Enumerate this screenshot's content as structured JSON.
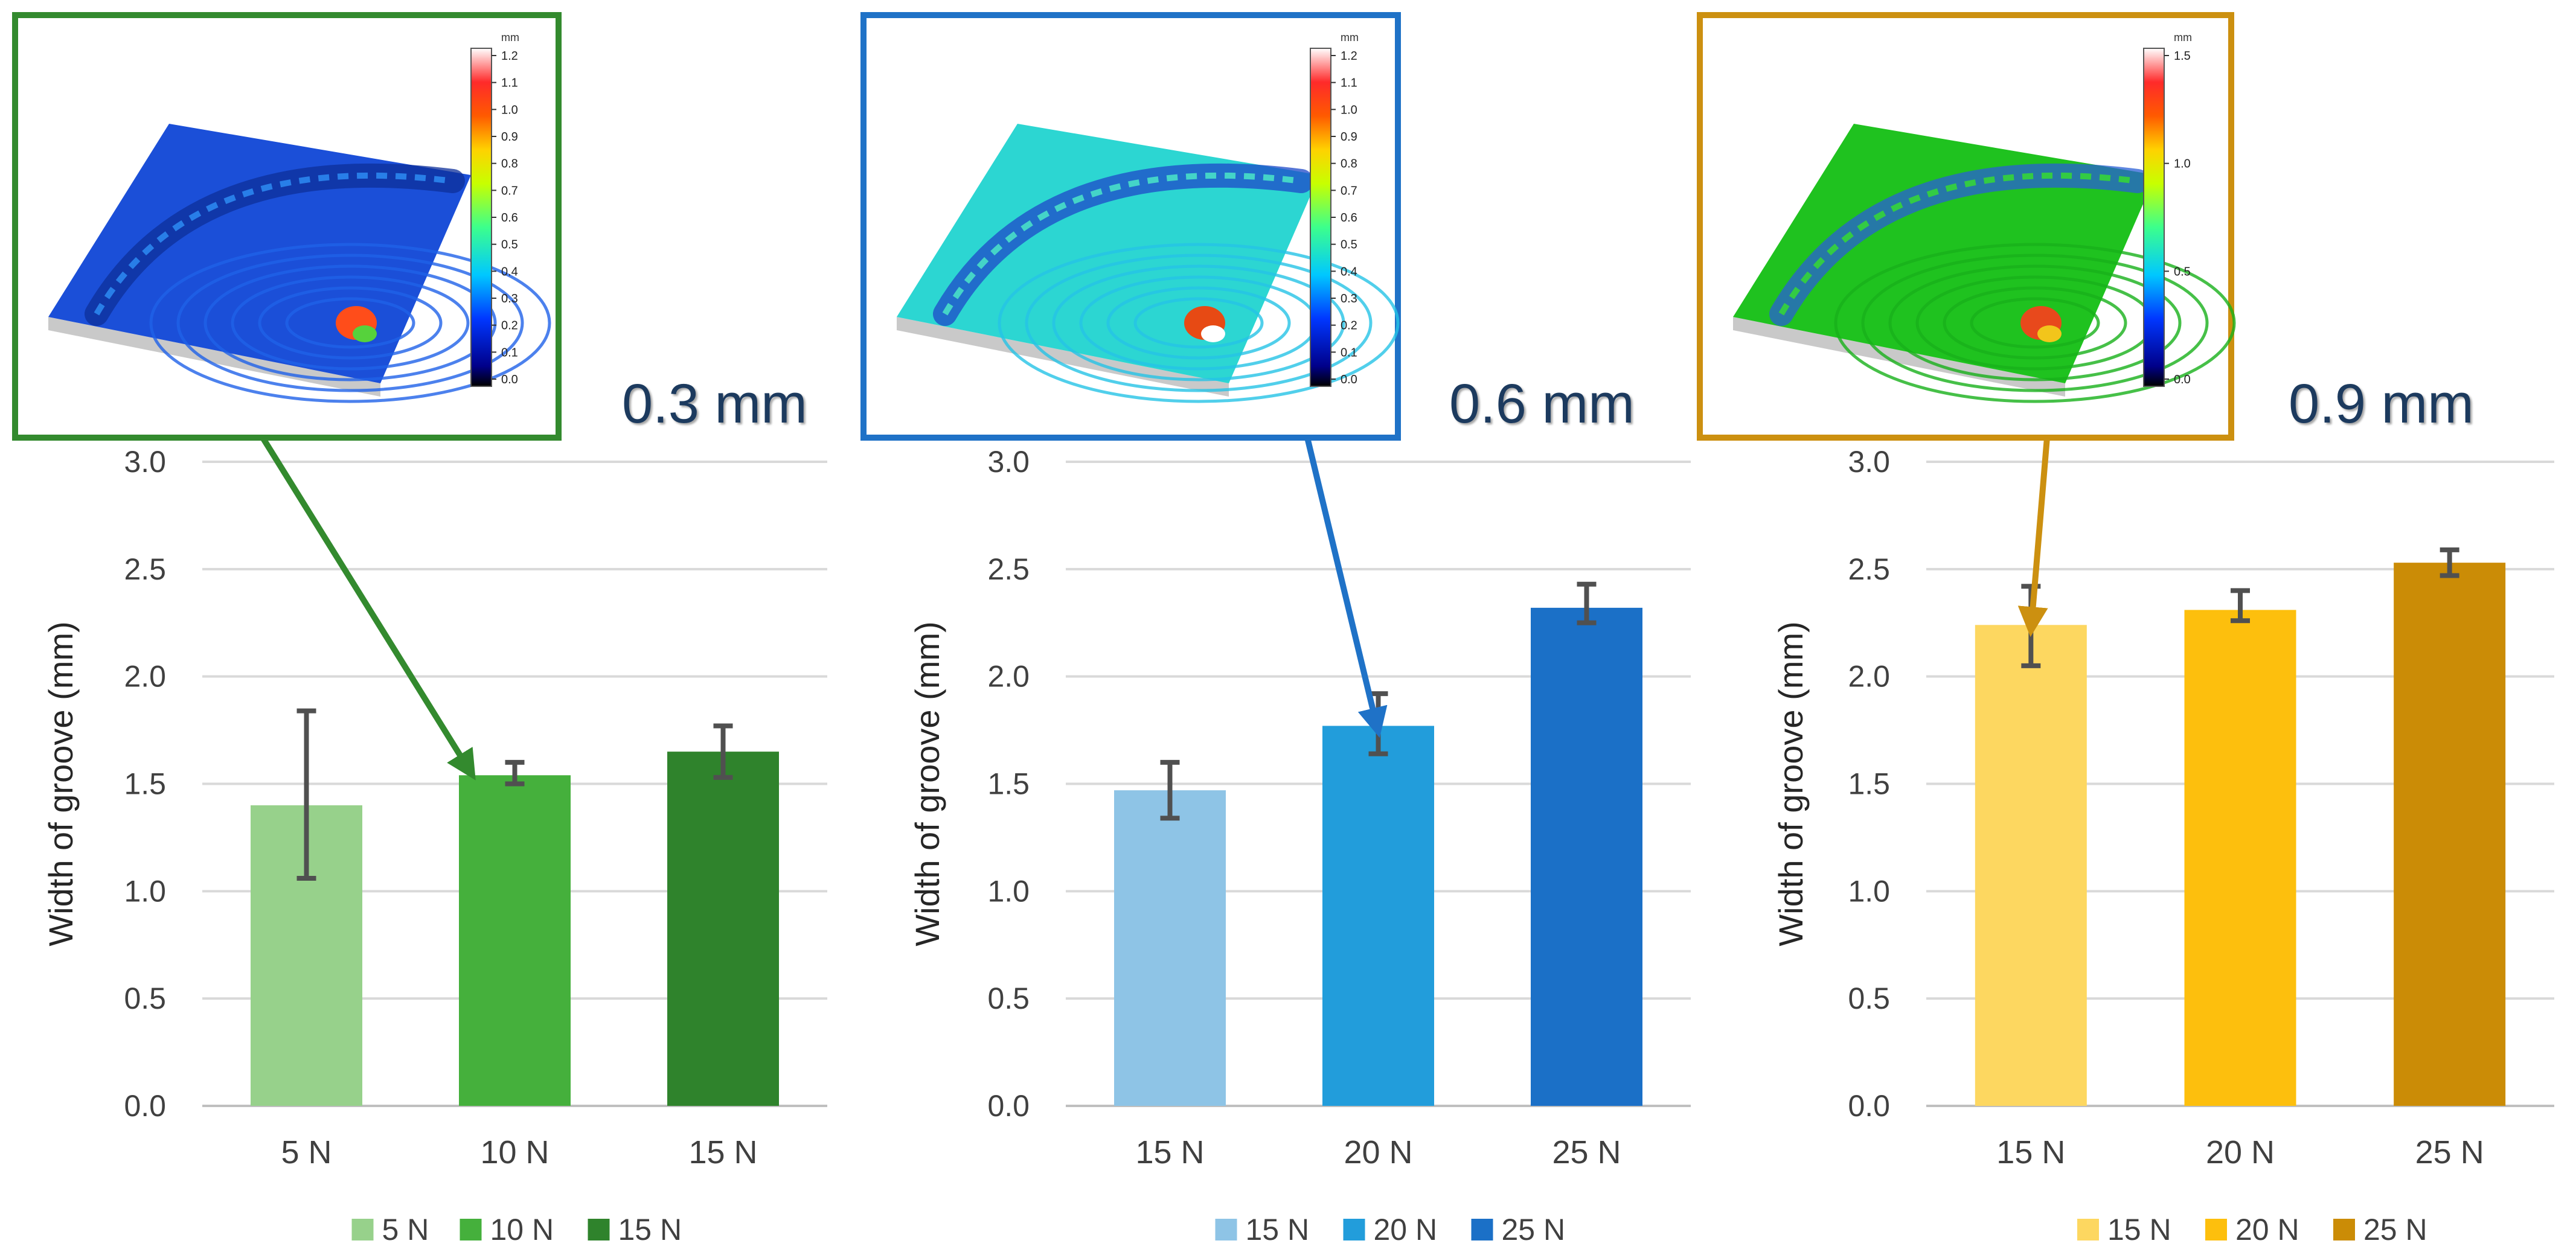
{
  "chart_data": [
    {
      "type": "bar",
      "title": "",
      "xlabel": "",
      "ylabel": "Width of groove (mm)",
      "ylim": [
        0,
        3
      ],
      "yticks": [
        "0.0",
        "0.5",
        "1.0",
        "1.5",
        "2.0",
        "2.5",
        "3.0"
      ],
      "grid": true,
      "categories": [
        "5 N",
        "10 N",
        "15 N"
      ],
      "values": [
        1.4,
        1.54,
        1.65
      ],
      "error_low": [
        1.06,
        1.5,
        1.53
      ],
      "error_high": [
        1.84,
        1.6,
        1.77
      ],
      "bar_colors": [
        "#97d18b",
        "#45b03c",
        "#2f832c"
      ],
      "legend": [
        "5 N",
        "10 N",
        "15 N"
      ],
      "legend_position": "bottom",
      "annotation": "0.3 mm",
      "inset_arrow_target": "10 N",
      "frame_color": "#338a2e"
    },
    {
      "type": "bar",
      "title": "",
      "xlabel": "",
      "ylabel": "Width of groove (mm)",
      "ylim": [
        0,
        3
      ],
      "yticks": [
        "0.0",
        "0.5",
        "1.0",
        "1.5",
        "2.0",
        "2.5",
        "3.0"
      ],
      "grid": true,
      "categories": [
        "15 N",
        "20 N",
        "25 N"
      ],
      "values": [
        1.47,
        1.77,
        2.32
      ],
      "error_low": [
        1.34,
        1.64,
        2.25
      ],
      "error_high": [
        1.6,
        1.92,
        2.43
      ],
      "bar_colors": [
        "#8ec4e6",
        "#229ddb",
        "#1b70c7"
      ],
      "legend": [
        "15 N",
        "20 N",
        "25 N"
      ],
      "legend_position": "bottom",
      "annotation": "0.6 mm",
      "inset_arrow_target": "20 N",
      "frame_color": "#1f72c7"
    },
    {
      "type": "bar",
      "title": "",
      "xlabel": "",
      "ylabel": "Width of groove (mm)",
      "ylim": [
        0,
        3
      ],
      "yticks": [
        "0.0",
        "0.5",
        "1.0",
        "1.5",
        "2.0",
        "2.5",
        "3.0"
      ],
      "grid": true,
      "categories": [
        "15 N",
        "20 N",
        "25 N"
      ],
      "values": [
        2.24,
        2.31,
        2.53
      ],
      "error_low": [
        2.05,
        2.26,
        2.47
      ],
      "error_high": [
        2.42,
        2.4,
        2.59
      ],
      "bar_colors": [
        "#fdd760",
        "#fdbf0d",
        "#cb8c06"
      ],
      "legend": [
        "15 N",
        "20 N",
        "25 N"
      ],
      "legend_position": "bottom",
      "annotation": "0.9 mm",
      "inset_arrow_target": "15 N",
      "frame_color": "#cc9010"
    }
  ],
  "insets": [
    {
      "colorbar_unit": "mm",
      "colorbar_ticks": [
        "1.2",
        "1.1",
        "1.0",
        "0.9",
        "0.8",
        "0.7",
        "0.6",
        "0.5",
        "0.4",
        "0.3",
        "0.2",
        "0.1",
        "0.0"
      ],
      "surface_colors": [
        "#1b4fd8",
        "#1f62e8",
        "#2b86ee",
        "#0d2f9a"
      ],
      "highlight_colors": [
        "#ff4d1a",
        "#56d23c"
      ]
    },
    {
      "colorbar_unit": "mm",
      "colorbar_ticks": [
        "1.2",
        "1.1",
        "1.0",
        "0.9",
        "0.8",
        "0.7",
        "0.6",
        "0.5",
        "0.4",
        "0.3",
        "0.2",
        "0.1",
        "0.0"
      ],
      "surface_colors": [
        "#2cd6d2",
        "#25c3e6",
        "#48e0c8",
        "#1d48c8"
      ],
      "highlight_colors": [
        "#e74a14",
        "#ffffff"
      ]
    },
    {
      "colorbar_unit": "mm",
      "colorbar_ticks": [
        "1.5",
        "1.0",
        "0.5",
        "0.0"
      ],
      "surface_colors": [
        "#1fc21f",
        "#18b01a",
        "#35d43a",
        "#2a5fd6"
      ],
      "highlight_colors": [
        "#e8491c",
        "#f2c51b"
      ]
    }
  ],
  "colors": {
    "annotation_text": "#1c3a5e",
    "axis_text": "#404040",
    "grid": "#d9d9d9",
    "error_bar": "#505050"
  }
}
